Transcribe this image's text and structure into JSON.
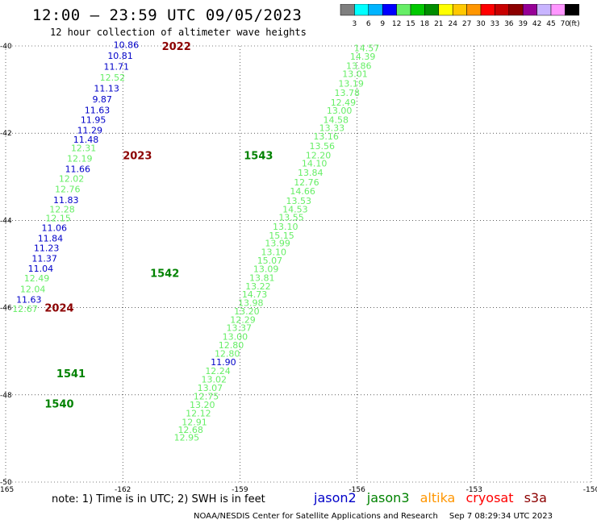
{
  "header": {
    "title": "12:00 — 23:59 UTC 09/05/2023",
    "subtitle": "12 hour collection of altimeter wave heights"
  },
  "colorbar": {
    "values": [
      "3",
      "6",
      "9",
      "12",
      "15",
      "18",
      "21",
      "24",
      "27",
      "30",
      "33",
      "36",
      "39",
      "42",
      "45",
      "70"
    ],
    "unit": "(ft)",
    "colors": [
      "#7f7f7f",
      "#00ffff",
      "#00b4ff",
      "#0000ff",
      "#66ee66",
      "#00c800",
      "#008c00",
      "#ffff00",
      "#ffc800",
      "#ff9600",
      "#ff0000",
      "#c80000",
      "#8c0000",
      "#960096",
      "#c8b4ff",
      "#ff96ff",
      "#000000"
    ]
  },
  "map": {
    "lat_ticks": [
      "-40",
      "-42",
      "-44",
      "-46",
      "-48",
      "-50"
    ],
    "lon_ticks": [
      "-165",
      "-162",
      "-159",
      "-156",
      "-153",
      "-150"
    ],
    "lat_range": [
      -50,
      -40
    ],
    "lon_range": [
      -165,
      -150
    ],
    "satellite_colors": {
      "jason2": "#0000c8",
      "jason3": "#66ee66",
      "jason3_label": "#008200",
      "altika": "#ff9600",
      "cryosat": "#ff0000",
      "s3a": "#8c0000"
    },
    "track_labels": [
      {
        "text": "2022",
        "lat": -40.0,
        "lon": -161.0,
        "sat": "s3a"
      },
      {
        "text": "2023",
        "lat": -42.5,
        "lon": -162.0,
        "sat": "s3a"
      },
      {
        "text": "2024",
        "lat": -46.0,
        "lon": -164.0,
        "sat": "s3a"
      },
      {
        "text": "1543",
        "lat": -42.5,
        "lon": -158.9,
        "sat": "jason3_label"
      },
      {
        "text": "1542",
        "lat": -45.2,
        "lon": -161.3,
        "sat": "jason3_label"
      },
      {
        "text": "1541",
        "lat": -47.5,
        "lon": -163.7,
        "sat": "jason3_label"
      },
      {
        "text": "1540",
        "lat": -48.2,
        "lon": -164.0,
        "sat": "jason3_label"
      }
    ],
    "readings": [
      {
        "v": "10.86",
        "lat": -39.97,
        "lon": -162.24,
        "sat": "jason2"
      },
      {
        "v": "10.81",
        "lat": -40.22,
        "lon": -162.39,
        "sat": "jason2"
      },
      {
        "v": "11.71",
        "lat": -40.47,
        "lon": -162.49,
        "sat": "jason2"
      },
      {
        "v": "12.52",
        "lat": -40.72,
        "lon": -162.59,
        "sat": "jason3"
      },
      {
        "v": "11.13",
        "lat": -40.97,
        "lon": -162.74,
        "sat": "jason2"
      },
      {
        "v": "9.87",
        "lat": -41.22,
        "lon": -162.78,
        "sat": "jason2"
      },
      {
        "v": "11.63",
        "lat": -41.47,
        "lon": -162.98,
        "sat": "jason2"
      },
      {
        "v": "11.95",
        "lat": -41.69,
        "lon": -163.08,
        "sat": "jason2"
      },
      {
        "v": "11.29",
        "lat": -41.93,
        "lon": -163.17,
        "sat": "jason2"
      },
      {
        "v": "11.48",
        "lat": -42.14,
        "lon": -163.27,
        "sat": "jason2"
      },
      {
        "v": "12.31",
        "lat": -42.34,
        "lon": -163.33,
        "sat": "jason3"
      },
      {
        "v": "12.19",
        "lat": -42.58,
        "lon": -163.43,
        "sat": "jason3"
      },
      {
        "v": "11.66",
        "lat": -42.82,
        "lon": -163.48,
        "sat": "jason2"
      },
      {
        "v": "12.02",
        "lat": -43.04,
        "lon": -163.64,
        "sat": "jason3"
      },
      {
        "v": "12.76",
        "lat": -43.28,
        "lon": -163.74,
        "sat": "jason3"
      },
      {
        "v": "11.83",
        "lat": -43.53,
        "lon": -163.78,
        "sat": "jason2"
      },
      {
        "v": "12.28",
        "lat": -43.74,
        "lon": -163.88,
        "sat": "jason3"
      },
      {
        "v": "12.15",
        "lat": -43.95,
        "lon": -163.98,
        "sat": "jason3"
      },
      {
        "v": "11.06",
        "lat": -44.17,
        "lon": -164.08,
        "sat": "jason2"
      },
      {
        "v": "11.84",
        "lat": -44.41,
        "lon": -164.18,
        "sat": "jason2"
      },
      {
        "v": "11.23",
        "lat": -44.63,
        "lon": -164.28,
        "sat": "jason2"
      },
      {
        "v": "11.37",
        "lat": -44.87,
        "lon": -164.33,
        "sat": "jason2"
      },
      {
        "v": "11.04",
        "lat": -45.1,
        "lon": -164.43,
        "sat": "jason2"
      },
      {
        "v": "12.49",
        "lat": -45.32,
        "lon": -164.53,
        "sat": "jason3"
      },
      {
        "v": "12.04",
        "lat": -45.57,
        "lon": -164.63,
        "sat": "jason3"
      },
      {
        "v": "11.63",
        "lat": -45.81,
        "lon": -164.73,
        "sat": "jason2"
      },
      {
        "v": "12.67",
        "lat": -46.03,
        "lon": -164.83,
        "sat": "jason3"
      },
      {
        "v": "14.57",
        "lat": -40.05,
        "lon": -156.08,
        "sat": "jason3"
      },
      {
        "v": "14.39",
        "lat": -40.24,
        "lon": -156.18,
        "sat": "jason3"
      },
      {
        "v": "13.86",
        "lat": -40.45,
        "lon": -156.28,
        "sat": "jason3"
      },
      {
        "v": "13.01",
        "lat": -40.64,
        "lon": -156.38,
        "sat": "jason3"
      },
      {
        "v": "13.19",
        "lat": -40.86,
        "lon": -156.48,
        "sat": "jason3"
      },
      {
        "v": "13.78",
        "lat": -41.07,
        "lon": -156.58,
        "sat": "jason3"
      },
      {
        "v": "12.49",
        "lat": -41.29,
        "lon": -156.68,
        "sat": "jason3"
      },
      {
        "v": "13.00",
        "lat": -41.48,
        "lon": -156.78,
        "sat": "jason3"
      },
      {
        "v": "14.58",
        "lat": -41.69,
        "lon": -156.87,
        "sat": "jason3"
      },
      {
        "v": "13.33",
        "lat": -41.88,
        "lon": -156.97,
        "sat": "jason3"
      },
      {
        "v": "13.16",
        "lat": -42.07,
        "lon": -157.12,
        "sat": "jason3"
      },
      {
        "v": "13.56",
        "lat": -42.29,
        "lon": -157.22,
        "sat": "jason3"
      },
      {
        "v": "12.20",
        "lat": -42.5,
        "lon": -157.32,
        "sat": "jason3"
      },
      {
        "v": "14.10",
        "lat": -42.69,
        "lon": -157.42,
        "sat": "jason3"
      },
      {
        "v": "13.84",
        "lat": -42.9,
        "lon": -157.52,
        "sat": "jason3"
      },
      {
        "v": "12.76",
        "lat": -43.12,
        "lon": -157.62,
        "sat": "jason3"
      },
      {
        "v": "14.66",
        "lat": -43.33,
        "lon": -157.72,
        "sat": "jason3"
      },
      {
        "v": "13.53",
        "lat": -43.55,
        "lon": -157.82,
        "sat": "jason3"
      },
      {
        "v": "14.53",
        "lat": -43.74,
        "lon": -157.91,
        "sat": "jason3"
      },
      {
        "v": "13.55",
        "lat": -43.93,
        "lon": -158.01,
        "sat": "jason3"
      },
      {
        "v": "13.10",
        "lat": -44.14,
        "lon": -158.16,
        "sat": "jason3"
      },
      {
        "v": "15.15",
        "lat": -44.34,
        "lon": -158.26,
        "sat": "jason3"
      },
      {
        "v": "13.99",
        "lat": -44.52,
        "lon": -158.36,
        "sat": "jason3"
      },
      {
        "v": "13.10",
        "lat": -44.72,
        "lon": -158.46,
        "sat": "jason3"
      },
      {
        "v": "15.07",
        "lat": -44.92,
        "lon": -158.56,
        "sat": "jason3"
      },
      {
        "v": "13.09",
        "lat": -45.11,
        "lon": -158.66,
        "sat": "jason3"
      },
      {
        "v": "13.81",
        "lat": -45.31,
        "lon": -158.76,
        "sat": "jason3"
      },
      {
        "v": "13.22",
        "lat": -45.51,
        "lon": -158.86,
        "sat": "jason3"
      },
      {
        "v": "14.73",
        "lat": -45.69,
        "lon": -158.95,
        "sat": "jason3"
      },
      {
        "v": "13.98",
        "lat": -45.89,
        "lon": -159.05,
        "sat": "jason3"
      },
      {
        "v": "13.20",
        "lat": -46.08,
        "lon": -159.15,
        "sat": "jason3"
      },
      {
        "v": "12.29",
        "lat": -46.28,
        "lon": -159.25,
        "sat": "jason3"
      },
      {
        "v": "13.37",
        "lat": -46.46,
        "lon": -159.35,
        "sat": "jason3"
      },
      {
        "v": "13.00",
        "lat": -46.66,
        "lon": -159.45,
        "sat": "jason3"
      },
      {
        "v": "12.80",
        "lat": -46.86,
        "lon": -159.55,
        "sat": "jason3"
      },
      {
        "v": "12.80",
        "lat": -47.05,
        "lon": -159.65,
        "sat": "jason3"
      },
      {
        "v": "11.90",
        "lat": -47.25,
        "lon": -159.75,
        "sat": "jason2"
      },
      {
        "v": "12.24",
        "lat": -47.45,
        "lon": -159.89,
        "sat": "jason3"
      },
      {
        "v": "13.02",
        "lat": -47.64,
        "lon": -159.99,
        "sat": "jason3"
      },
      {
        "v": "13.07",
        "lat": -47.84,
        "lon": -160.09,
        "sat": "jason3"
      },
      {
        "v": "12.75",
        "lat": -48.03,
        "lon": -160.19,
        "sat": "jason3"
      },
      {
        "v": "13.20",
        "lat": -48.23,
        "lon": -160.29,
        "sat": "jason3"
      },
      {
        "v": "12.12",
        "lat": -48.42,
        "lon": -160.39,
        "sat": "jason3"
      },
      {
        "v": "12.91",
        "lat": -48.62,
        "lon": -160.49,
        "sat": "jason3"
      },
      {
        "v": "12.68",
        "lat": -48.8,
        "lon": -160.59,
        "sat": "jason3"
      },
      {
        "v": "12.95",
        "lat": -48.97,
        "lon": -160.69,
        "sat": "jason3"
      }
    ]
  },
  "note": "note: 1) Time is in UTC; 2) SWH is in feet",
  "legend": {
    "jason2": "jason2",
    "jason3": "jason3",
    "altika": "altika",
    "cryosat": "cryosat",
    "s3a": "s3a"
  },
  "footer": {
    "credit": "NOAA/NESDIS Center for Satellite Applications and Research",
    "timestamp": "Sep  7 08:29:34 UTC 2023"
  }
}
